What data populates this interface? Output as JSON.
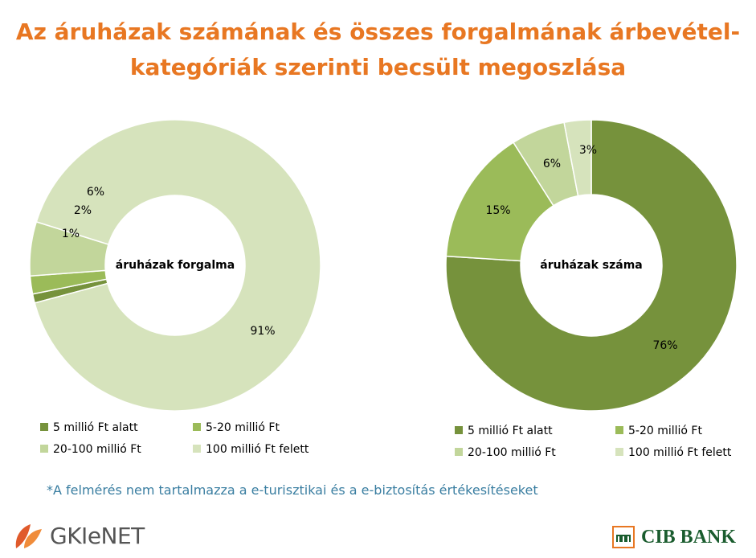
{
  "title_line1": "Az áruházak számának és összes forgalmának árbevétel-",
  "title_line2": "kategóriák szerinti becsült megoszlása",
  "chart_data": [
    {
      "type": "pie",
      "center_label": "áruházak forgalma",
      "categories": [
        "5 millió Ft alatt",
        "5-20 millió Ft",
        "20-100 millió Ft",
        "100 millió Ft felett"
      ],
      "values": [
        1,
        2,
        6,
        91
      ],
      "data_labels": [
        "1%",
        "2%",
        "6%",
        "91%"
      ],
      "colors": [
        "#76923c",
        "#9bbb59",
        "#c2d69b",
        "#d6e3bc"
      ],
      "legend_position": "bottom"
    },
    {
      "type": "pie",
      "center_label": "áruházak száma",
      "categories": [
        "5 millió Ft alatt",
        "5-20 millió Ft",
        "20-100 millió Ft",
        "100 millió Ft felett"
      ],
      "values": [
        76,
        15,
        6,
        3
      ],
      "data_labels": [
        "76%",
        "15%",
        "6%",
        "3%"
      ],
      "colors": [
        "#76923c",
        "#9bbb59",
        "#c2d69b",
        "#d6e3bc"
      ],
      "legend_position": "bottom"
    }
  ],
  "footnote": "*A felmérés nem tartalmazza a e-turisztikai és a e-biztosítás értékesítéseket",
  "logos": {
    "left_text": "GKIeNET",
    "left_icon": "leaf-icon",
    "right_text": "CIB BANK",
    "right_icon": "cib-emblem-icon"
  }
}
